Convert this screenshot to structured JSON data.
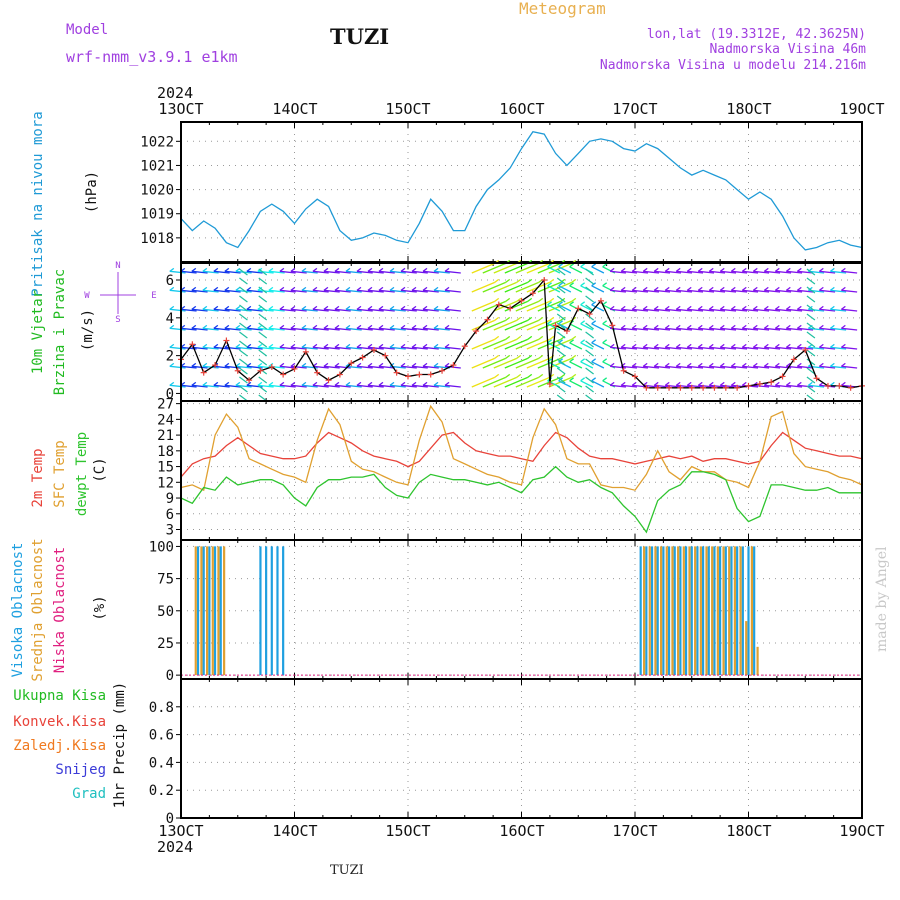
{
  "header": {
    "model_label": "Model",
    "model_name": "wrf-nmm_v3.9.1 e1km",
    "station": "TUZI",
    "meteogram_label": "Meteogram",
    "lonlat": "lon,lat (19.3312E, 42.3625N)",
    "elevation": "Nadmorska Visina 46m",
    "model_elevation": "Nadmorska Visina u modelu 214.216m",
    "year_top": "2024",
    "year_bottom": "2024",
    "footer_station": "TUZI",
    "credit": "made by Angel"
  },
  "colors": {
    "pressure": "#1f9ad6",
    "wind_label": "#22bb22",
    "temp2m": "#e8433a",
    "sfc_temp": "#e0a030",
    "dewpt": "#2ec42e",
    "high_cloud": "#1fa0e0",
    "mid_cloud": "#e0a030",
    "low_cloud": "#e02080",
    "total_precip": "#22bb22",
    "conv_precip": "#e8433a",
    "frozen_precip": "#f07a20",
    "snow": "#3b3bd8",
    "hail": "#20c0c0",
    "compass": "#a040e0",
    "credit": "#c8c8c8"
  },
  "chart_data": [
    {
      "type": "line",
      "panel": "pressure",
      "ylabel_left": "Pritisak na nivou mora",
      "ylabel_unit": "(hPa)",
      "x_ticks": [
        "13OCT",
        "14OCT",
        "15OCT",
        "16OCT",
        "17OCT",
        "18OCT",
        "19OCT"
      ],
      "ylim": [
        1017,
        1022.8
      ],
      "y_ticks": [
        "1018",
        "1019",
        "1020",
        "1021",
        "1022"
      ],
      "series": [
        {
          "x": [
            13.0,
            13.1,
            13.2,
            13.3,
            13.4,
            13.5,
            13.6,
            13.7,
            13.8,
            13.9,
            14.0,
            14.1,
            14.2,
            14.3,
            14.4,
            14.5,
            14.6,
            14.7,
            14.8,
            14.9,
            15.0,
            15.1,
            15.2,
            15.3,
            15.4,
            15.5,
            15.6,
            15.7,
            15.8,
            15.9,
            16.0,
            16.1,
            16.2,
            16.3,
            16.4,
            16.5,
            16.6,
            16.7,
            16.8,
            16.9,
            17.0,
            17.1,
            17.2,
            17.3,
            17.4,
            17.5,
            17.6,
            17.7,
            17.8,
            17.9,
            18.0,
            18.1,
            18.2,
            18.3,
            18.4,
            18.5,
            18.6,
            18.7,
            18.8,
            18.9,
            19.0
          ],
          "values": [
            1018.8,
            1018.3,
            1018.7,
            1018.4,
            1017.8,
            1017.6,
            1018.3,
            1019.1,
            1019.4,
            1019.1,
            1018.6,
            1019.2,
            1019.6,
            1019.3,
            1018.3,
            1017.9,
            1018.0,
            1018.2,
            1018.1,
            1017.9,
            1017.8,
            1018.6,
            1019.6,
            1019.1,
            1018.3,
            1018.3,
            1019.3,
            1020.0,
            1020.4,
            1020.9,
            1021.7,
            1022.4,
            1022.3,
            1021.5,
            1021.0,
            1021.5,
            1022.0,
            1022.1,
            1022.0,
            1021.7,
            1021.6,
            1021.9,
            1021.7,
            1021.3,
            1020.9,
            1020.6,
            1020.8,
            1020.6,
            1020.4,
            1020.0,
            1019.6,
            1019.9,
            1019.6,
            1018.9,
            1018.0,
            1017.5,
            1017.6,
            1017.8,
            1017.9,
            1017.7,
            1017.6
          ],
          "color": "#1f9ad6"
        }
      ]
    },
    {
      "type": "line",
      "panel": "wind",
      "ylabel_left_1": "10m Vjetar",
      "ylabel_left_2": "Brzina i Pravac",
      "ylabel_unit": "(m/s)",
      "compass": {
        "n": "N",
        "s": "S",
        "w": "W",
        "e": "E"
      },
      "ylim": [
        -0.4,
        6.9
      ],
      "y_ticks": [
        "0",
        "2",
        "4",
        "6"
      ],
      "series": [
        {
          "name": "speed",
          "x": [
            13.0,
            13.1,
            13.2,
            13.3,
            13.4,
            13.5,
            13.6,
            13.7,
            13.8,
            13.9,
            14.0,
            14.1,
            14.2,
            14.3,
            14.4,
            14.5,
            14.6,
            14.7,
            14.8,
            14.9,
            15.0,
            15.1,
            15.2,
            15.3,
            15.4,
            15.5,
            15.6,
            15.7,
            15.8,
            15.9,
            16.0,
            16.1,
            16.2,
            16.25,
            16.3,
            16.4,
            16.5,
            16.6,
            16.7,
            16.8,
            16.9,
            17.0,
            17.1,
            17.2,
            17.3,
            17.4,
            17.5,
            17.6,
            17.7,
            17.8,
            17.9,
            18.0,
            18.1,
            18.2,
            18.3,
            18.4,
            18.5,
            18.6,
            18.7,
            18.8,
            18.9,
            19.0
          ],
          "values": [
            1.8,
            2.6,
            1.1,
            1.5,
            2.8,
            1.2,
            0.7,
            1.2,
            1.4,
            1.0,
            1.3,
            2.2,
            1.1,
            0.7,
            1.0,
            1.6,
            1.9,
            2.3,
            2.0,
            1.1,
            0.9,
            1.0,
            1.0,
            1.2,
            1.5,
            2.5,
            3.3,
            3.9,
            4.7,
            4.5,
            4.9,
            5.3,
            6.0,
            0.5,
            3.6,
            3.3,
            4.5,
            4.2,
            4.9,
            3.6,
            1.2,
            0.9,
            0.3,
            0.3,
            0.3,
            0.3,
            0.3,
            0.3,
            0.3,
            0.3,
            0.3,
            0.4,
            0.5,
            0.6,
            0.9,
            1.8,
            2.3,
            0.8,
            0.4,
            0.4,
            0.3,
            0.4
          ],
          "color": "#000000"
        }
      ]
    },
    {
      "type": "line",
      "panel": "temperature",
      "ylabel_left_1": "2m Temp",
      "ylabel_left_2": "SFC Temp",
      "ylabel_left_3": "dewpt Temp",
      "ylabel_unit": "(C)",
      "ylim": [
        1,
        27.5
      ],
      "y_ticks": [
        "3",
        "6",
        "9",
        "12",
        "15",
        "18",
        "21",
        "24",
        "27"
      ],
      "series": [
        {
          "name": "2m Temp",
          "x": [
            13.0,
            13.1,
            13.2,
            13.3,
            13.4,
            13.5,
            13.6,
            13.7,
            13.8,
            13.9,
            14.0,
            14.1,
            14.2,
            14.3,
            14.4,
            14.5,
            14.6,
            14.7,
            14.8,
            14.9,
            15.0,
            15.1,
            15.2,
            15.3,
            15.4,
            15.5,
            15.6,
            15.7,
            15.8,
            15.9,
            16.0,
            16.1,
            16.2,
            16.3,
            16.4,
            16.5,
            16.6,
            16.7,
            16.8,
            16.9,
            17.0,
            17.1,
            17.2,
            17.3,
            17.4,
            17.5,
            17.6,
            17.7,
            17.8,
            17.9,
            18.0,
            18.1,
            18.2,
            18.3,
            18.4,
            18.5,
            18.6,
            18.7,
            18.8,
            18.9,
            19.0
          ],
          "values": [
            13.0,
            15.5,
            16.5,
            17.0,
            19.0,
            20.5,
            19.0,
            17.5,
            17.0,
            16.5,
            16.5,
            17.0,
            19.5,
            21.5,
            20.5,
            19.5,
            18.0,
            17.0,
            16.5,
            16.0,
            15.0,
            16.0,
            18.5,
            21.0,
            21.5,
            19.5,
            18.0,
            17.5,
            17.0,
            17.0,
            16.5,
            16.0,
            19.0,
            21.5,
            20.5,
            18.5,
            17.0,
            16.5,
            16.5,
            16.0,
            15.5,
            16.0,
            16.5,
            17.0,
            16.5,
            17.0,
            16.0,
            16.5,
            16.5,
            16.0,
            15.5,
            16.0,
            19.0,
            21.5,
            20.0,
            18.5,
            18.0,
            17.5,
            17.0,
            17.0,
            16.5
          ],
          "color": "#e8433a"
        },
        {
          "name": "SFC Temp",
          "x": [
            13.0,
            13.1,
            13.2,
            13.3,
            13.4,
            13.5,
            13.6,
            13.7,
            13.8,
            13.9,
            14.0,
            14.1,
            14.2,
            14.3,
            14.4,
            14.5,
            14.6,
            14.7,
            14.8,
            14.9,
            15.0,
            15.1,
            15.2,
            15.3,
            15.4,
            15.5,
            15.6,
            15.7,
            15.8,
            15.9,
            16.0,
            16.1,
            16.2,
            16.3,
            16.4,
            16.5,
            16.6,
            16.7,
            16.8,
            16.9,
            17.0,
            17.1,
            17.2,
            17.3,
            17.4,
            17.5,
            17.6,
            17.7,
            17.8,
            17.9,
            18.0,
            18.1,
            18.2,
            18.3,
            18.4,
            18.5,
            18.6,
            18.7,
            18.8,
            18.9,
            19.0
          ],
          "values": [
            11.0,
            11.5,
            10.5,
            21.0,
            25.0,
            22.5,
            16.5,
            15.5,
            14.5,
            13.5,
            13.0,
            12.0,
            20.0,
            26.0,
            23.0,
            16.0,
            14.5,
            14.0,
            13.0,
            12.0,
            11.5,
            20.0,
            26.5,
            23.5,
            16.5,
            15.5,
            14.5,
            13.5,
            13.0,
            12.0,
            11.5,
            20.5,
            26.0,
            23.0,
            16.5,
            15.5,
            15.5,
            11.5,
            11.0,
            11.0,
            10.5,
            13.5,
            18.0,
            14.0,
            12.5,
            15.0,
            14.0,
            14.0,
            12.5,
            12.0,
            11.0,
            16.0,
            24.5,
            25.5,
            17.5,
            15.0,
            14.5,
            14.0,
            13.0,
            12.5,
            11.5
          ],
          "color": "#e0a030"
        },
        {
          "name": "dewpt Temp",
          "x": [
            13.0,
            13.1,
            13.2,
            13.3,
            13.4,
            13.5,
            13.6,
            13.7,
            13.8,
            13.9,
            14.0,
            14.1,
            14.2,
            14.3,
            14.4,
            14.5,
            14.6,
            14.7,
            14.8,
            14.9,
            15.0,
            15.1,
            15.2,
            15.3,
            15.4,
            15.5,
            15.6,
            15.7,
            15.8,
            15.9,
            16.0,
            16.1,
            16.2,
            16.3,
            16.4,
            16.5,
            16.6,
            16.7,
            16.8,
            16.9,
            17.0,
            17.1,
            17.2,
            17.3,
            17.4,
            17.5,
            17.6,
            17.7,
            17.8,
            17.9,
            18.0,
            18.1,
            18.2,
            18.3,
            18.4,
            18.5,
            18.6,
            18.7,
            18.8,
            18.9,
            19.0
          ],
          "values": [
            9.0,
            8.0,
            11.0,
            10.5,
            13.0,
            11.5,
            12.0,
            12.5,
            12.5,
            11.5,
            9.0,
            7.5,
            11.0,
            12.5,
            12.5,
            13.0,
            13.0,
            13.5,
            11.0,
            9.5,
            9.0,
            12.0,
            13.5,
            13.0,
            12.5,
            12.5,
            12.0,
            11.5,
            12.0,
            11.0,
            10.0,
            12.5,
            13.0,
            15.0,
            13.0,
            12.0,
            12.5,
            11.0,
            10.0,
            7.5,
            5.5,
            2.5,
            8.5,
            10.5,
            11.5,
            14.0,
            14.0,
            13.5,
            12.5,
            7.0,
            4.5,
            5.5,
            11.5,
            11.5,
            11.0,
            10.5,
            10.5,
            11.0,
            10.0,
            10.0,
            10.0
          ],
          "color": "#2ec42e"
        }
      ]
    },
    {
      "type": "bar",
      "panel": "cloud",
      "ylabel_left_1": "Visoka Oblacnost",
      "ylabel_left_2": "Srednja Oblacnost",
      "ylabel_left_3": "Niska Oblacnost",
      "ylabel_unit": "(%)",
      "ylim": [
        -3,
        105
      ],
      "y_ticks": [
        "0",
        "25",
        "50",
        "75",
        "100"
      ],
      "series": [
        {
          "name": "Visoka Oblacnost",
          "x": [
            13.15,
            13.2,
            13.25,
            13.3,
            13.35,
            13.7,
            13.75,
            13.8,
            13.85,
            13.9,
            17.05,
            17.1,
            17.15,
            17.2,
            17.25,
            17.3,
            17.35,
            17.4,
            17.45,
            17.5,
            17.55,
            17.6,
            17.65,
            17.7,
            17.75,
            17.8,
            17.85,
            17.9,
            17.95,
            18.0,
            18.05
          ],
          "values": [
            100,
            100,
            100,
            100,
            100,
            100,
            100,
            100,
            100,
            100,
            100,
            100,
            100,
            100,
            100,
            100,
            100,
            100,
            100,
            100,
            100,
            100,
            100,
            100,
            100,
            100,
            100,
            100,
            100,
            100,
            100
          ],
          "color": "#1fa0e0"
        },
        {
          "name": "Srednja Oblacnost",
          "x": [
            13.13,
            13.18,
            13.23,
            13.28,
            13.33,
            13.38,
            17.08,
            17.13,
            17.18,
            17.23,
            17.28,
            17.33,
            17.38,
            17.43,
            17.48,
            17.53,
            17.58,
            17.63,
            17.68,
            17.73,
            17.78,
            17.83,
            17.88,
            17.93,
            17.98,
            18.03,
            18.08
          ],
          "values": [
            100,
            100,
            100,
            100,
            100,
            100,
            100,
            100,
            100,
            100,
            100,
            100,
            100,
            100,
            100,
            100,
            100,
            100,
            100,
            100,
            100,
            100,
            100,
            100,
            42,
            100,
            22
          ],
          "color": "#e0a030"
        },
        {
          "name": "Niska Oblacnost",
          "x": [],
          "values": [],
          "color": "#e02080"
        }
      ]
    },
    {
      "type": "line",
      "panel": "precip",
      "ylabel_unit": "1hr Precip (mm)",
      "legend": [
        "Ukupna Kisa",
        "Konvek.Kisa",
        "Zaledj.Kisa",
        "Snijeg",
        "Grad"
      ],
      "ylim": [
        0,
        1.0
      ],
      "y_ticks": [
        "0",
        "0.2",
        "0.4",
        "0.6",
        "0.8"
      ],
      "x_ticks": [
        "13OCT",
        "14OCT",
        "15OCT",
        "16OCT",
        "17OCT",
        "18OCT",
        "19OCT"
      ],
      "series": []
    }
  ]
}
